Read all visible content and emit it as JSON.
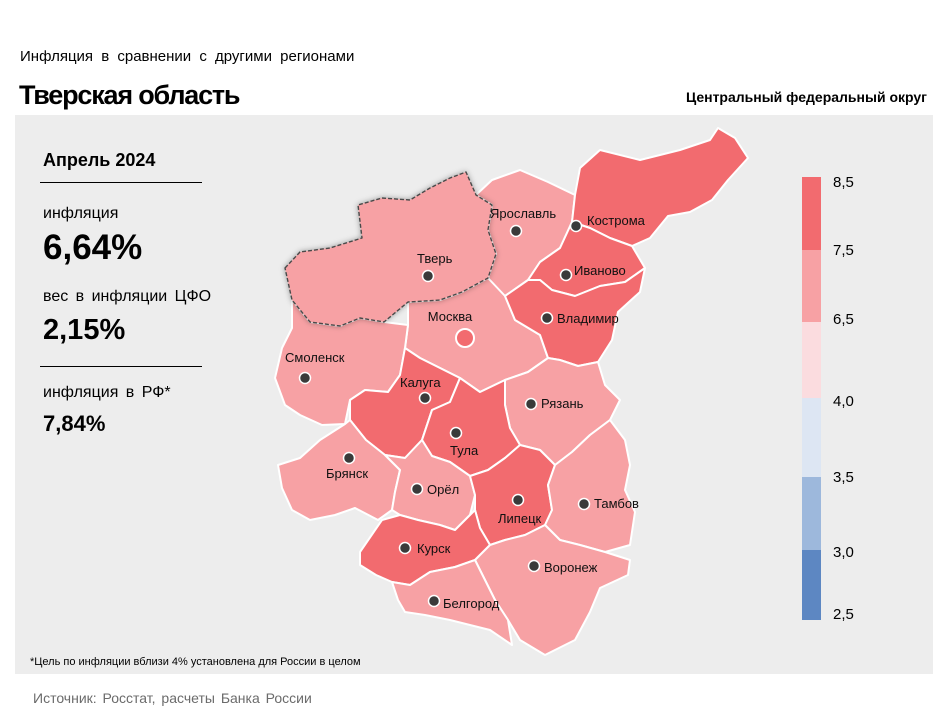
{
  "header": {
    "subtitle": "Инфляция  в сравнении  с другими  регионами",
    "region_title": "Тверская область",
    "district": "Центральный федеральный округ"
  },
  "info": {
    "period": "Апрель 2024",
    "inflation_label": "инфляция",
    "inflation_value": "6,64%",
    "weight_label": "вес в инфляции  ЦФО",
    "weight_value": "2,15%",
    "rf_label": "инфляция  в РФ*",
    "rf_value": "7,84%"
  },
  "footnote": "*Цель по инфляции вблизи 4% установлена для России в целом",
  "source": "Источник: Росстат, расчеты Банка России",
  "legend": {
    "ticks": [
      "8,5",
      "7,5",
      "6,5",
      "4,0",
      "3,5",
      "3,0",
      "2,5"
    ],
    "colors": [
      "#f26b6f",
      "#f7a1a4",
      "#fbdcdf",
      "#dde6f3",
      "#9db8dc",
      "#5d87c2"
    ]
  },
  "map": {
    "colors": {
      "dark": "#f26b6f",
      "light": "#f7a1a4",
      "highlight_border": "#4a4a4a"
    },
    "regions": [
      {
        "name": "Тверь",
        "level": "light",
        "selected": true
      },
      {
        "name": "Ярославль",
        "level": "light"
      },
      {
        "name": "Кострома",
        "level": "dark"
      },
      {
        "name": "Иваново",
        "level": "dark"
      },
      {
        "name": "Москва",
        "level": "light"
      },
      {
        "name": "Владимир",
        "level": "dark"
      },
      {
        "name": "Смоленск",
        "level": "light"
      },
      {
        "name": "Калуга",
        "level": "dark"
      },
      {
        "name": "Рязань",
        "level": "light"
      },
      {
        "name": "Тула",
        "level": "dark"
      },
      {
        "name": "Брянск",
        "level": "light"
      },
      {
        "name": "Орёл",
        "level": "light"
      },
      {
        "name": "Липецк",
        "level": "dark"
      },
      {
        "name": "Тамбов",
        "level": "light"
      },
      {
        "name": "Курск",
        "level": "dark"
      },
      {
        "name": "Воронеж",
        "level": "light"
      },
      {
        "name": "Белгород",
        "level": "light"
      }
    ]
  }
}
